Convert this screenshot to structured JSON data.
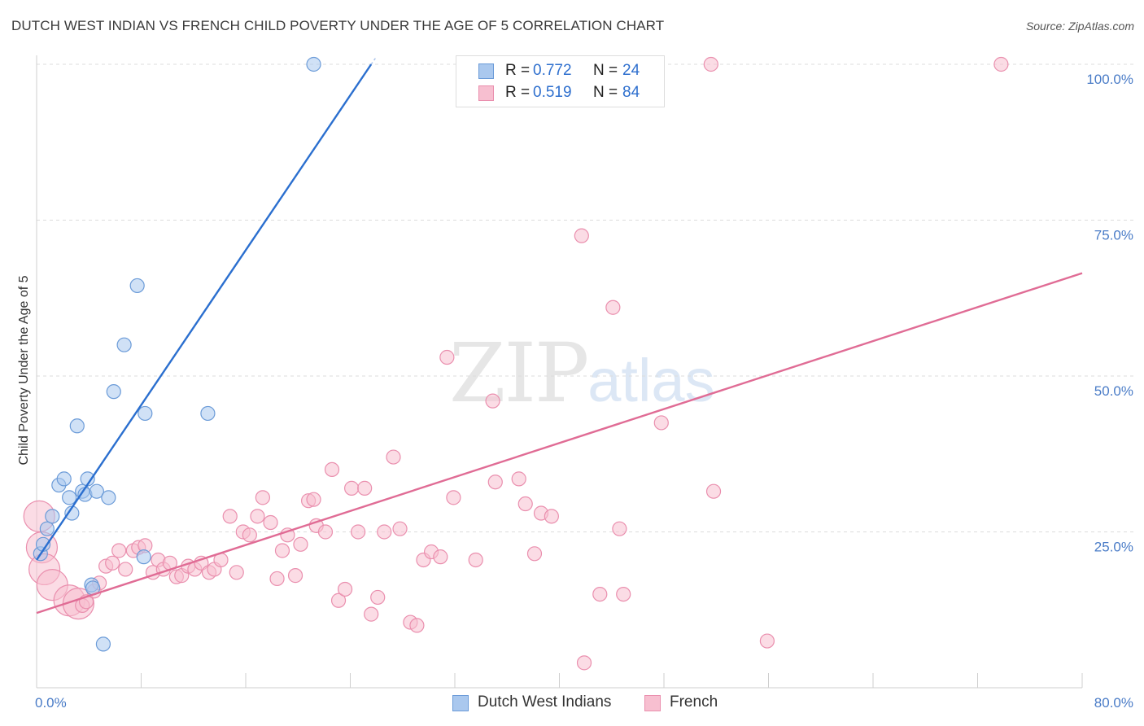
{
  "title": "DUTCH WEST INDIAN VS FRENCH CHILD POVERTY UNDER THE AGE OF 5 CORRELATION CHART",
  "source": "Source: ZipAtlas.com",
  "watermark": {
    "zip": "ZIP",
    "atlas": "atlas"
  },
  "legend": {
    "rows": [
      {
        "r_label": "R =",
        "r_value": "0.772",
        "n_label": "N =",
        "n_value": "24"
      },
      {
        "r_label": "R =",
        "r_value": "0.519",
        "n_label": "N =",
        "n_value": "84"
      }
    ]
  },
  "chart_data": {
    "type": "scatter",
    "ylabel": "Child Poverty Under the Age of 5",
    "xlabel": "",
    "xlim": [
      0,
      80
    ],
    "ylim": [
      0,
      100
    ],
    "x_tick_labels": [
      "0.0%",
      "80.0%"
    ],
    "y_tick_labels": [
      "100.0%",
      "75.0%",
      "50.0%",
      "25.0%"
    ],
    "y_tick_values": [
      100,
      75,
      50,
      25
    ],
    "grid": true,
    "legend_position": "bottom",
    "series": [
      {
        "name": "Dutch West Indians",
        "color": "#aac8ee",
        "edge": "#6b9bd8",
        "line_color": "#2b6fcf",
        "trend": {
          "x0": 0,
          "y0": 20.5,
          "x1": 25.6,
          "y1": 100
        },
        "points": [
          [
            0.3,
            21.5
          ],
          [
            0.5,
            23
          ],
          [
            0.8,
            25.5
          ],
          [
            1.2,
            27.5
          ],
          [
            1.7,
            32.5
          ],
          [
            2.1,
            33.5
          ],
          [
            2.5,
            30.5
          ],
          [
            2.7,
            28
          ],
          [
            3.1,
            42
          ],
          [
            3.5,
            31.5
          ],
          [
            3.7,
            31
          ],
          [
            3.9,
            33.5
          ],
          [
            4.2,
            16.5
          ],
          [
            4.6,
            31.5
          ],
          [
            5.1,
            7
          ],
          [
            5.5,
            30.5
          ],
          [
            5.9,
            47.5
          ],
          [
            6.7,
            55
          ],
          [
            7.7,
            64.5
          ],
          [
            8.2,
            21
          ],
          [
            8.3,
            44
          ],
          [
            13.1,
            44
          ],
          [
            21.2,
            100
          ],
          [
            4.3,
            16
          ]
        ]
      },
      {
        "name": "French",
        "color": "#f7bfd0",
        "edge": "#ea8fae",
        "line_color": "#e06c95",
        "trend": {
          "x0": 0,
          "y0": 12,
          "x1": 80,
          "y1": 66.5
        },
        "points": [
          [
            0.2,
            27.5
          ],
          [
            0.4,
            22.5
          ],
          [
            0.6,
            19
          ],
          [
            1.2,
            16.5
          ],
          [
            2.5,
            14
          ],
          [
            3.2,
            13.5
          ],
          [
            3.5,
            13.2
          ],
          [
            3.8,
            13.8
          ],
          [
            4.4,
            15.5
          ],
          [
            4.8,
            16.8
          ],
          [
            5.3,
            19.5
          ],
          [
            5.8,
            20
          ],
          [
            6.3,
            22
          ],
          [
            6.8,
            19
          ],
          [
            7.4,
            22
          ],
          [
            7.8,
            22.5
          ],
          [
            8.3,
            22.8
          ],
          [
            8.9,
            18.5
          ],
          [
            9.3,
            20.5
          ],
          [
            9.7,
            19
          ],
          [
            10.2,
            20
          ],
          [
            10.7,
            17.8
          ],
          [
            11.1,
            18
          ],
          [
            11.6,
            19.5
          ],
          [
            12.1,
            19
          ],
          [
            12.6,
            20
          ],
          [
            13.2,
            18.5
          ],
          [
            13.6,
            19
          ],
          [
            14.1,
            20.5
          ],
          [
            14.8,
            27.5
          ],
          [
            15.3,
            18.5
          ],
          [
            15.8,
            25
          ],
          [
            16.3,
            24.5
          ],
          [
            16.9,
            27.5
          ],
          [
            17.3,
            30.5
          ],
          [
            17.9,
            26.5
          ],
          [
            18.4,
            17.5
          ],
          [
            18.8,
            22
          ],
          [
            19.2,
            24.5
          ],
          [
            19.8,
            18
          ],
          [
            20.2,
            23
          ],
          [
            20.8,
            30
          ],
          [
            21.2,
            30.2
          ],
          [
            21.4,
            26
          ],
          [
            22.1,
            25
          ],
          [
            22.6,
            35
          ],
          [
            23.1,
            14
          ],
          [
            23.6,
            15.8
          ],
          [
            24.1,
            32
          ],
          [
            24.6,
            25
          ],
          [
            25.1,
            32
          ],
          [
            25.6,
            11.8
          ],
          [
            26.1,
            14.5
          ],
          [
            26.6,
            25
          ],
          [
            27.3,
            37
          ],
          [
            27.8,
            25.5
          ],
          [
            28.6,
            10.5
          ],
          [
            29.1,
            10
          ],
          [
            29.6,
            20.5
          ],
          [
            30.2,
            21.8
          ],
          [
            30.9,
            21
          ],
          [
            31.4,
            53
          ],
          [
            31.9,
            30.5
          ],
          [
            33.6,
            20.5
          ],
          [
            34.9,
            46
          ],
          [
            35.1,
            33
          ],
          [
            36.9,
            33.5
          ],
          [
            37.4,
            29.5
          ],
          [
            38.1,
            21.5
          ],
          [
            38.6,
            28
          ],
          [
            39.4,
            27.5
          ],
          [
            41.7,
            72.5
          ],
          [
            41.9,
            4
          ],
          [
            43.1,
            15
          ],
          [
            44.1,
            61
          ],
          [
            44.6,
            25.5
          ],
          [
            44.9,
            15
          ],
          [
            45.3,
            100
          ],
          [
            47.8,
            42.5
          ],
          [
            51.6,
            100
          ],
          [
            51.8,
            31.5
          ],
          [
            55.9,
            7.5
          ],
          [
            73.8,
            100
          ],
          [
            47.3,
            100
          ]
        ]
      }
    ]
  }
}
